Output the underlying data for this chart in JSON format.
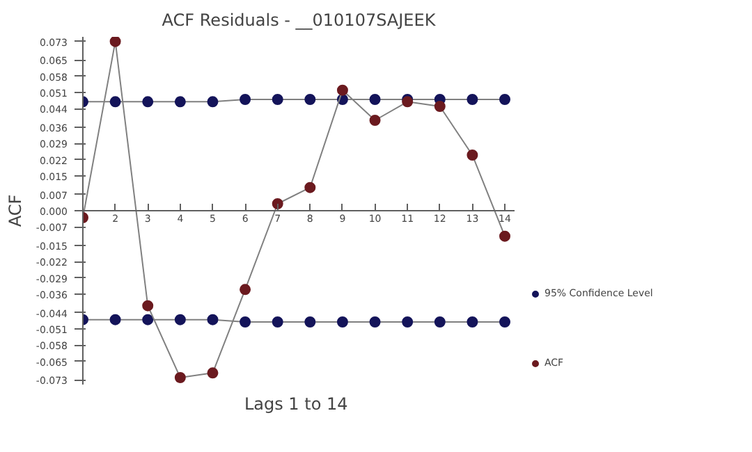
{
  "chart_data": {
    "type": "line",
    "title": "ACF Residuals - __010107SAJEEK",
    "xlabel": "Lags  1 to 14",
    "ylabel": "ACF",
    "x": [
      1,
      2,
      3,
      4,
      5,
      6,
      7,
      8,
      9,
      10,
      11,
      12,
      13,
      14
    ],
    "xlim": [
      1,
      14.3
    ],
    "xticks": [
      2,
      3,
      4,
      5,
      6,
      7,
      8,
      9,
      10,
      11,
      12,
      13,
      14
    ],
    "ylim": [
      -0.075,
      0.075
    ],
    "yticks": [
      {
        "value": 0.073,
        "label": "0.073"
      },
      {
        "value": 0.065,
        "label": "0.065"
      },
      {
        "value": 0.058,
        "label": "0.058"
      },
      {
        "value": 0.051,
        "label": "0.051"
      },
      {
        "value": 0.044,
        "label": "0.044"
      },
      {
        "value": 0.036,
        "label": "0.036"
      },
      {
        "value": 0.029,
        "label": "0.029"
      },
      {
        "value": 0.022,
        "label": "0.022"
      },
      {
        "value": 0.015,
        "label": "0.015"
      },
      {
        "value": 0.007,
        "label": "0.007"
      },
      {
        "value": 0,
        "label": "0.000"
      },
      {
        "value": -0.007,
        "label": "-0.007"
      },
      {
        "value": -0.015,
        "label": "-0.015"
      },
      {
        "value": -0.022,
        "label": "-0.022"
      },
      {
        "value": -0.029,
        "label": "-0.029"
      },
      {
        "value": -0.036,
        "label": "-0.036"
      },
      {
        "value": -0.044,
        "label": "-0.044"
      },
      {
        "value": -0.051,
        "label": "-0.051"
      },
      {
        "value": -0.058,
        "label": "-0.058"
      },
      {
        "value": -0.065,
        "label": "-0.065"
      },
      {
        "value": -0.073,
        "label": "-0.073"
      }
    ],
    "grid": false,
    "legend": "right",
    "marker": "circle",
    "line_style": "solid",
    "series": [
      {
        "name": "95% Confidence Level",
        "color": "#14145a",
        "values": [
          0.047,
          0.047,
          0.047,
          0.047,
          0.047,
          0.048,
          0.048,
          0.048,
          0.048,
          0.048,
          0.048,
          0.048,
          0.048,
          0.048
        ]
      },
      {
        "color": "#14145a",
        "values": [
          -0.047,
          -0.047,
          -0.047,
          -0.047,
          -0.047,
          -0.048,
          -0.048,
          -0.048,
          -0.048,
          -0.048,
          -0.048,
          -0.048,
          -0.048,
          -0.048
        ]
      },
      {
        "name": "ACF",
        "color": "#6b1a1f",
        "values": [
          -0.003,
          0.073,
          -0.041,
          -0.072,
          -0.07,
          -0.034,
          0.003,
          0.01,
          0.052,
          0.039,
          0.047,
          0.045,
          0.024,
          -0.011
        ]
      }
    ]
  }
}
